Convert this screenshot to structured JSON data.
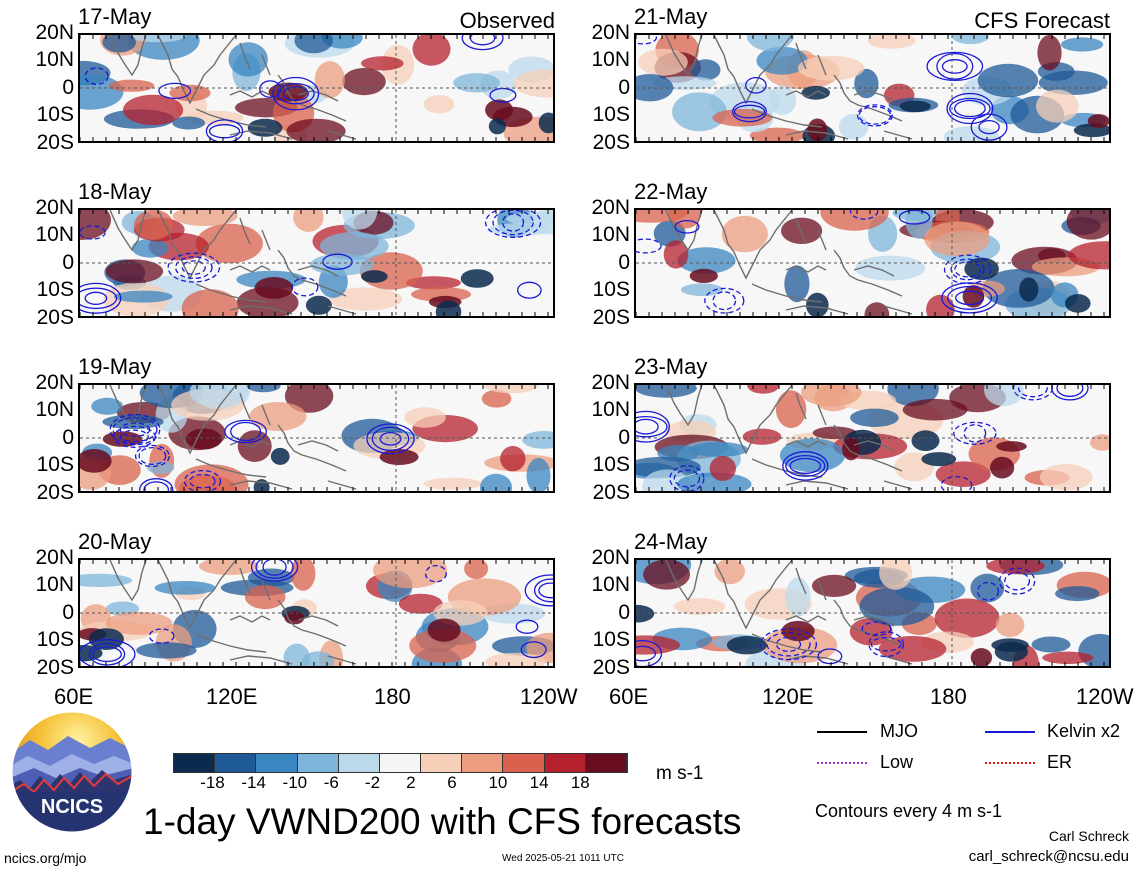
{
  "observed_label": "Observed",
  "forecast_label": "CFS Forecast",
  "lat_labels": [
    "20N",
    "10N",
    "0",
    "10S",
    "20S"
  ],
  "lon_labels": [
    "60E",
    "120E",
    "180",
    "120W"
  ],
  "observed_dates": [
    "17-May",
    "18-May",
    "19-May",
    "20-May"
  ],
  "forecast_dates": [
    "21-May",
    "22-May",
    "23-May",
    "24-May"
  ],
  "colorbar": {
    "labels": [
      "-18",
      "-14",
      "-10",
      "-6",
      "-2",
      "2",
      "6",
      "10",
      "14",
      "18"
    ],
    "colors": [
      "#0b2a4e",
      "#1f5a98",
      "#3a86c0",
      "#7db6da",
      "#bcd9ec",
      "#f5f5f5",
      "#f6cfb8",
      "#ec9d7f",
      "#d9614e",
      "#b5202d",
      "#690c1f"
    ],
    "units": "m s-1"
  },
  "legend": {
    "mjo": "MJO",
    "kelvin": "Kelvin x2",
    "low": "Low",
    "er": "ER",
    "colors": {
      "mjo": "#000000",
      "kelvin": "#1a1ad6",
      "low": "#9b30d9",
      "er": "#e01515"
    }
  },
  "title": "1-day VWND200 with CFS forecasts",
  "contours_note": "Contours every 4 m s-1",
  "author": "Carl Schreck",
  "email": "carl_schreck@ncsu.edu",
  "site": "ncics.org/mjo",
  "timestamp": "Wed 2025-05-21 1011 UTC",
  "logo_text": "NCICS"
}
